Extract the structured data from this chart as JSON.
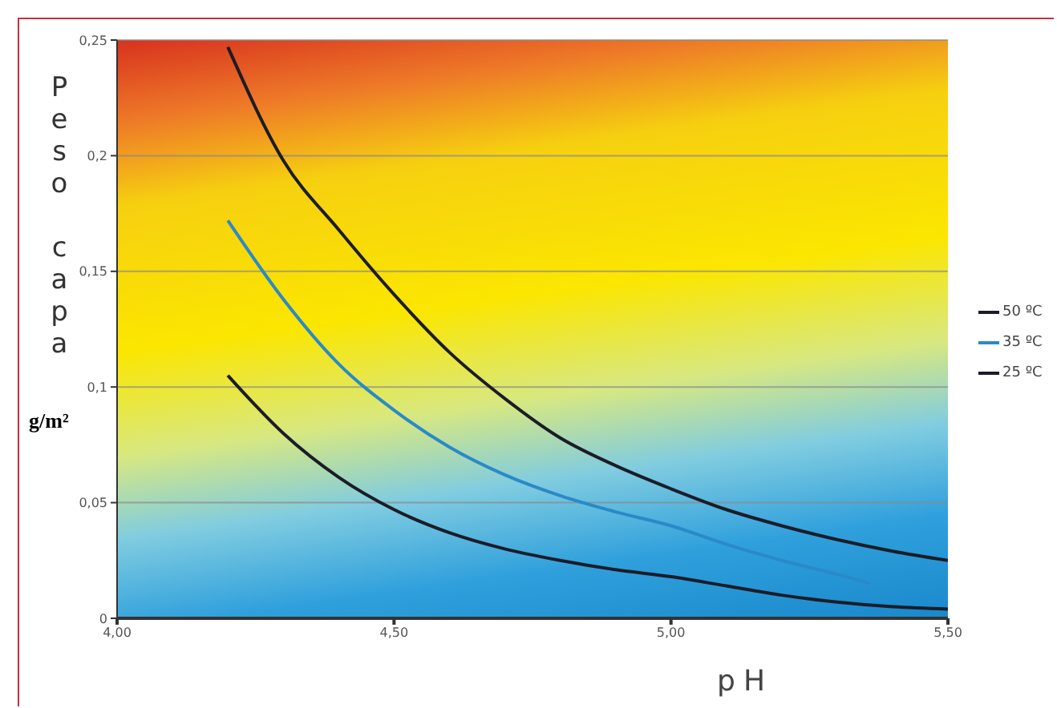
{
  "chart_data": {
    "type": "line",
    "xlabel": "pH",
    "ylabel": "Peso capa g/m²",
    "xlim": [
      4,
      5.5
    ],
    "xticks": [
      {
        "value": 4,
        "label": "4,00"
      },
      {
        "value": 4.5,
        "label": "4,50"
      },
      {
        "value": 5,
        "label": "5,00"
      },
      {
        "value": 5.5,
        "label": "5,50"
      }
    ],
    "ylim": [
      0,
      0.25
    ],
    "yticks": [
      {
        "value": 0,
        "label": "0"
      },
      {
        "value": 0.05,
        "label": "0,05"
      },
      {
        "value": 0.1,
        "label": "0,1"
      },
      {
        "value": 0.15,
        "label": "0,15"
      },
      {
        "value": 0.2,
        "label": "0,2"
      },
      {
        "value": 0.25,
        "label": "0,25"
      }
    ],
    "grid": "y",
    "legend": "right",
    "marker": "none",
    "line_style": "solid",
    "series": [
      {
        "name": "50 ºC",
        "color": "#1c1c28",
        "x": [
          4.2,
          4.3,
          4.4,
          4.5,
          4.6,
          4.7,
          4.8,
          4.9,
          5.0,
          5.1,
          5.2,
          5.3,
          5.4,
          5.5
        ],
        "values": [
          0.247,
          0.198,
          0.168,
          0.14,
          0.115,
          0.095,
          0.078,
          0.066,
          0.056,
          0.047,
          0.04,
          0.034,
          0.029,
          0.025
        ]
      },
      {
        "name": "35 ºC",
        "color": "#2a8ac8",
        "x": [
          4.2,
          4.3,
          4.4,
          4.5,
          4.6,
          4.7,
          4.8,
          4.9,
          5.0,
          5.1,
          5.2,
          5.3,
          5.36
        ],
        "values": [
          0.172,
          0.138,
          0.11,
          0.09,
          0.074,
          0.062,
          0.053,
          0.046,
          0.04,
          0.032,
          0.025,
          0.019,
          0.015
        ]
      },
      {
        "name": "25 ºC",
        "color": "#1c1c28",
        "x": [
          4.2,
          4.3,
          4.4,
          4.5,
          4.6,
          4.7,
          4.8,
          4.9,
          5.0,
          5.1,
          5.2,
          5.3,
          5.4,
          5.5
        ],
        "values": [
          0.105,
          0.08,
          0.061,
          0.047,
          0.037,
          0.03,
          0.025,
          0.021,
          0.018,
          0.014,
          0.01,
          0.007,
          0.005,
          0.004
        ]
      }
    ]
  }
}
